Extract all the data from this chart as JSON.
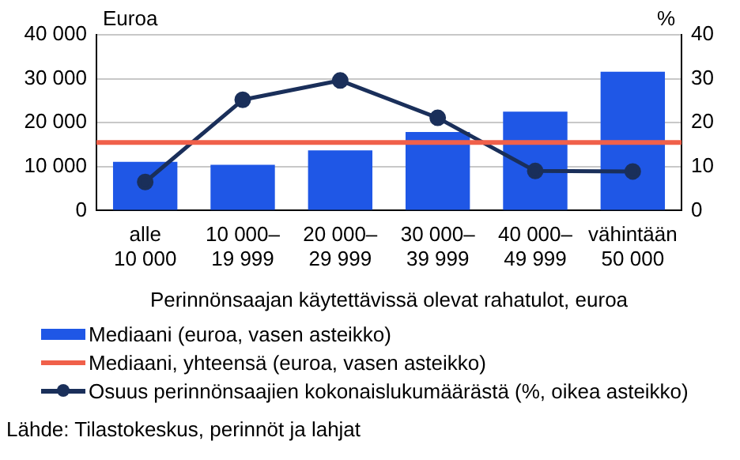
{
  "chart_data": {
    "type": "bar",
    "xlabel": "Perinnönsaajan käytettävissä olevat rahatulot, euroa",
    "ylabel": "Euroa",
    "y2label": "%",
    "categories": [
      "alle\n10 000",
      "10 000–\n19 999",
      "20 000–\n29 999",
      "30 000–\n39 999",
      "40 000–\n49 999",
      "vähintään\n50 000"
    ],
    "series": [
      {
        "name": "Mediaani (euroa, vasen asteikko)",
        "color": "#1f57e6",
        "values": [
          11100,
          10400,
          13700,
          17900,
          22500,
          31600
        ]
      },
      {
        "name": "Osuus perinnönsaajien kokonaislukumäärästä (%, oikea asteikko)",
        "type": "line",
        "axis": "y2",
        "color": "#1a2f5a",
        "values": [
          6.5,
          25.2,
          29.6,
          21.1,
          9.0,
          8.9
        ]
      }
    ],
    "ref_lines": [
      {
        "axis": "y",
        "value": 15500,
        "label": "Mediaani, yhteensä (euroa, vasen asteikko)",
        "color": "#f0604a"
      }
    ],
    "ylim": [
      0,
      40000
    ],
    "yticks": [
      {
        "value": 0,
        "label": "0"
      },
      {
        "value": 10000,
        "label": "10 000"
      },
      {
        "value": 20000,
        "label": "20 000"
      },
      {
        "value": 30000,
        "label": "30 000"
      },
      {
        "value": 40000,
        "label": "40 000"
      }
    ],
    "y2lim": [
      0,
      40
    ],
    "y2ticks": [
      0,
      10,
      20,
      30,
      40
    ],
    "grid": "y",
    "legend": "bottom",
    "marker": "circle",
    "line_style": "solid",
    "annotations": [
      "Lähde: Tilastokeskus, perinnöt ja lahjat"
    ]
  }
}
